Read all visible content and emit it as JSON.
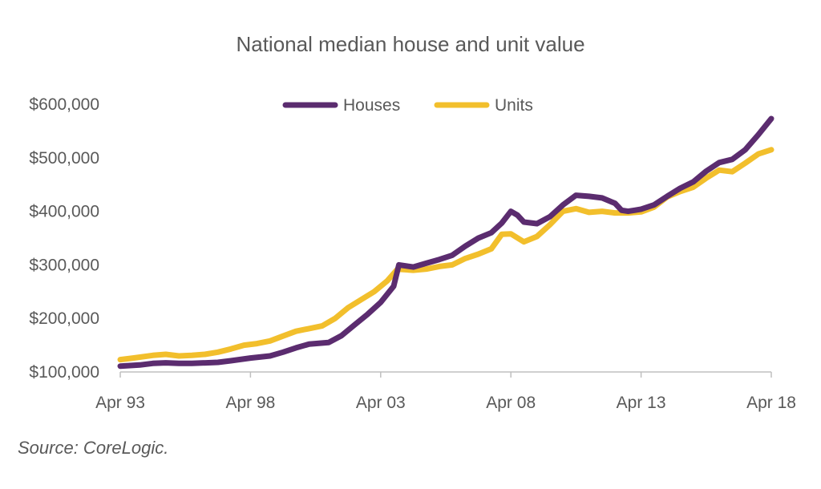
{
  "source_text": "Source: CoreLogic.",
  "chart_data": {
    "type": "line",
    "title": "National median house and unit value",
    "xlabel": "",
    "ylabel": "",
    "x_ticks": [
      "Apr 93",
      "Apr 98",
      "Apr 03",
      "Apr 08",
      "Apr 13",
      "Apr 18"
    ],
    "y_ticks": [
      "$100,000",
      "$200,000",
      "$300,000",
      "$400,000",
      "$500,000",
      "$600,000"
    ],
    "xlim": [
      1993.25,
      2018.25
    ],
    "ylim": [
      100000,
      600000
    ],
    "grid": false,
    "legend_position": "top-center",
    "series": [
      {
        "name": "Houses",
        "color": "#5b2c6f",
        "x": [
          1993.25,
          1994.0,
          1994.5,
          1995.0,
          1995.5,
          1996.0,
          1997.0,
          1997.5,
          1998.25,
          1999.0,
          1999.5,
          2000.0,
          2000.5,
          2001.25,
          2001.75,
          2002.25,
          2002.75,
          2003.25,
          2003.75,
          2003.95,
          2004.5,
          2005.0,
          2005.5,
          2006.0,
          2006.5,
          2007.0,
          2007.5,
          2007.9,
          2008.25,
          2008.5,
          2008.75,
          2009.25,
          2009.75,
          2010.25,
          2010.75,
          2011.25,
          2011.75,
          2012.25,
          2012.5,
          2012.75,
          2013.0,
          2013.25,
          2013.75,
          2014.25,
          2014.75,
          2015.25,
          2015.75,
          2016.25,
          2016.75,
          2017.25,
          2017.75,
          2018.25
        ],
        "y": [
          111000,
          113000,
          116000,
          117000,
          116000,
          116000,
          118000,
          121000,
          126000,
          130000,
          137000,
          145000,
          152000,
          155000,
          168000,
          188000,
          208000,
          230000,
          260000,
          300000,
          296000,
          303000,
          310000,
          318000,
          335000,
          350000,
          360000,
          378000,
          400000,
          393000,
          380000,
          377000,
          390000,
          412000,
          430000,
          428000,
          425000,
          415000,
          402000,
          400000,
          402000,
          404000,
          412000,
          428000,
          443000,
          455000,
          475000,
          491000,
          497000,
          515000,
          543000,
          573000
        ]
      },
      {
        "name": "Units",
        "color": "#f2bf2c",
        "x": [
          1993.25,
          1993.75,
          1994.5,
          1995.0,
          1995.5,
          1996.0,
          1996.5,
          1997.0,
          1997.5,
          1998.0,
          1998.5,
          1999.0,
          1999.5,
          2000.0,
          2000.5,
          2001.0,
          2001.5,
          2002.0,
          2002.5,
          2003.0,
          2003.5,
          2003.9,
          2004.5,
          2005.0,
          2005.5,
          2006.0,
          2006.5,
          2007.0,
          2007.5,
          2007.9,
          2008.25,
          2008.75,
          2009.25,
          2009.75,
          2010.25,
          2010.75,
          2011.25,
          2011.75,
          2012.25,
          2012.75,
          2013.25,
          2013.75,
          2014.25,
          2014.75,
          2015.25,
          2015.75,
          2016.25,
          2016.75,
          2017.25,
          2017.75,
          2018.25
        ],
        "y": [
          123000,
          126000,
          131000,
          133000,
          130000,
          131000,
          133000,
          137000,
          143000,
          150000,
          153000,
          158000,
          167000,
          176000,
          181000,
          186000,
          200000,
          220000,
          235000,
          250000,
          270000,
          292000,
          290000,
          292000,
          297000,
          300000,
          312000,
          320000,
          330000,
          357000,
          358000,
          343000,
          353000,
          375000,
          400000,
          405000,
          398000,
          400000,
          397000,
          397000,
          399000,
          408000,
          427000,
          437000,
          445000,
          462000,
          477000,
          474000,
          490000,
          507000,
          515000
        ]
      }
    ]
  }
}
